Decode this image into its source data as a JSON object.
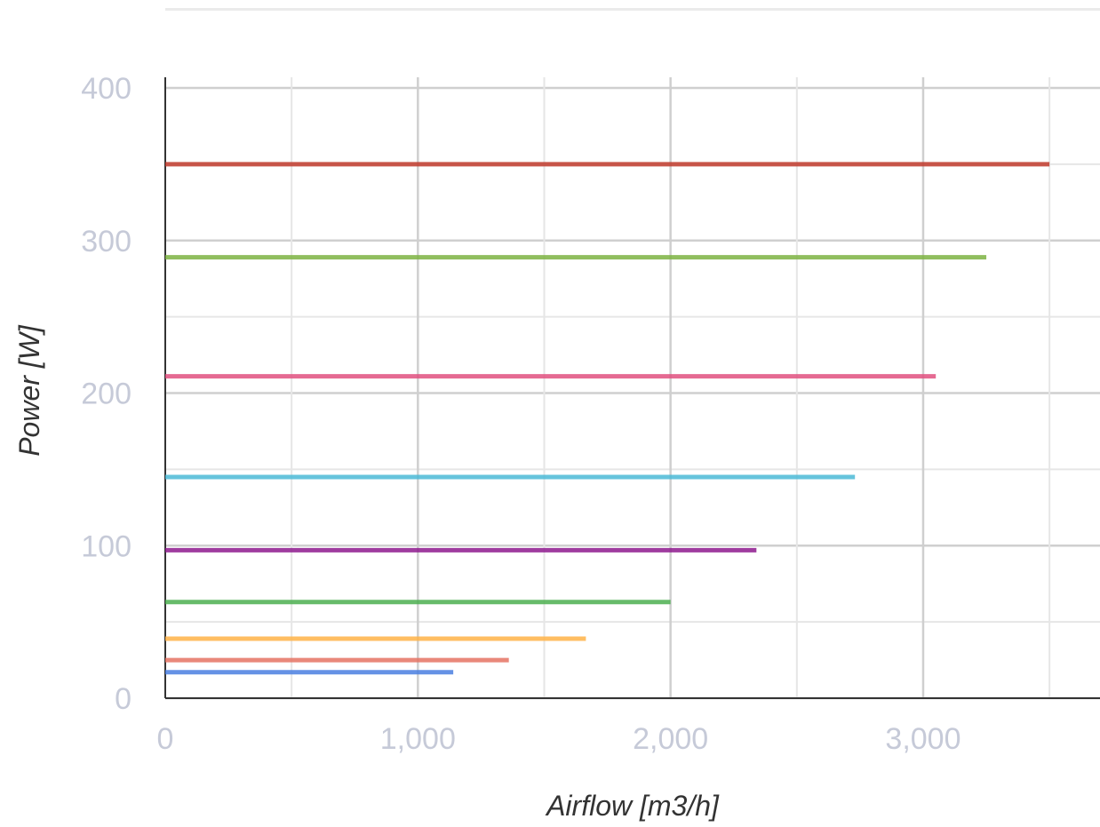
{
  "chart_data": {
    "type": "line",
    "xlabel": "Airflow [m3/h]",
    "ylabel": "Power [W]",
    "xlim": [
      0,
      3700
    ],
    "ylim": [
      0,
      400
    ],
    "x_ticks": [
      0,
      1000,
      2000,
      3000
    ],
    "x_tick_labels": [
      "0",
      "1,000",
      "2,000",
      "3,000"
    ],
    "y_ticks": [
      0,
      100,
      200,
      300,
      400
    ],
    "y_tick_labels": [
      "0",
      "100",
      "200",
      "300",
      "400"
    ],
    "grid": true,
    "series": [
      {
        "color": "#c0392b",
        "x": [
          0,
          3500
        ],
        "y": [
          350,
          350
        ]
      },
      {
        "color": "#7cb342",
        "x": [
          0,
          3250
        ],
        "y": [
          289,
          289
        ]
      },
      {
        "color": "#e0507f",
        "x": [
          0,
          3050
        ],
        "y": [
          211,
          211
        ]
      },
      {
        "color": "#4bbad6",
        "x": [
          0,
          2730
        ],
        "y": [
          145,
          145
        ]
      },
      {
        "color": "#8e1a8e",
        "x": [
          0,
          2340
        ],
        "y": [
          97,
          97
        ]
      },
      {
        "color": "#4caf50",
        "x": [
          0,
          2000
        ],
        "y": [
          63,
          63
        ]
      },
      {
        "color": "#ffb347",
        "x": [
          0,
          1665
        ],
        "y": [
          39,
          39
        ]
      },
      {
        "color": "#e57363",
        "x": [
          0,
          1360
        ],
        "y": [
          25,
          25
        ]
      },
      {
        "color": "#4a7fe0",
        "x": [
          0,
          1140
        ],
        "y": [
          17,
          17
        ]
      }
    ]
  }
}
